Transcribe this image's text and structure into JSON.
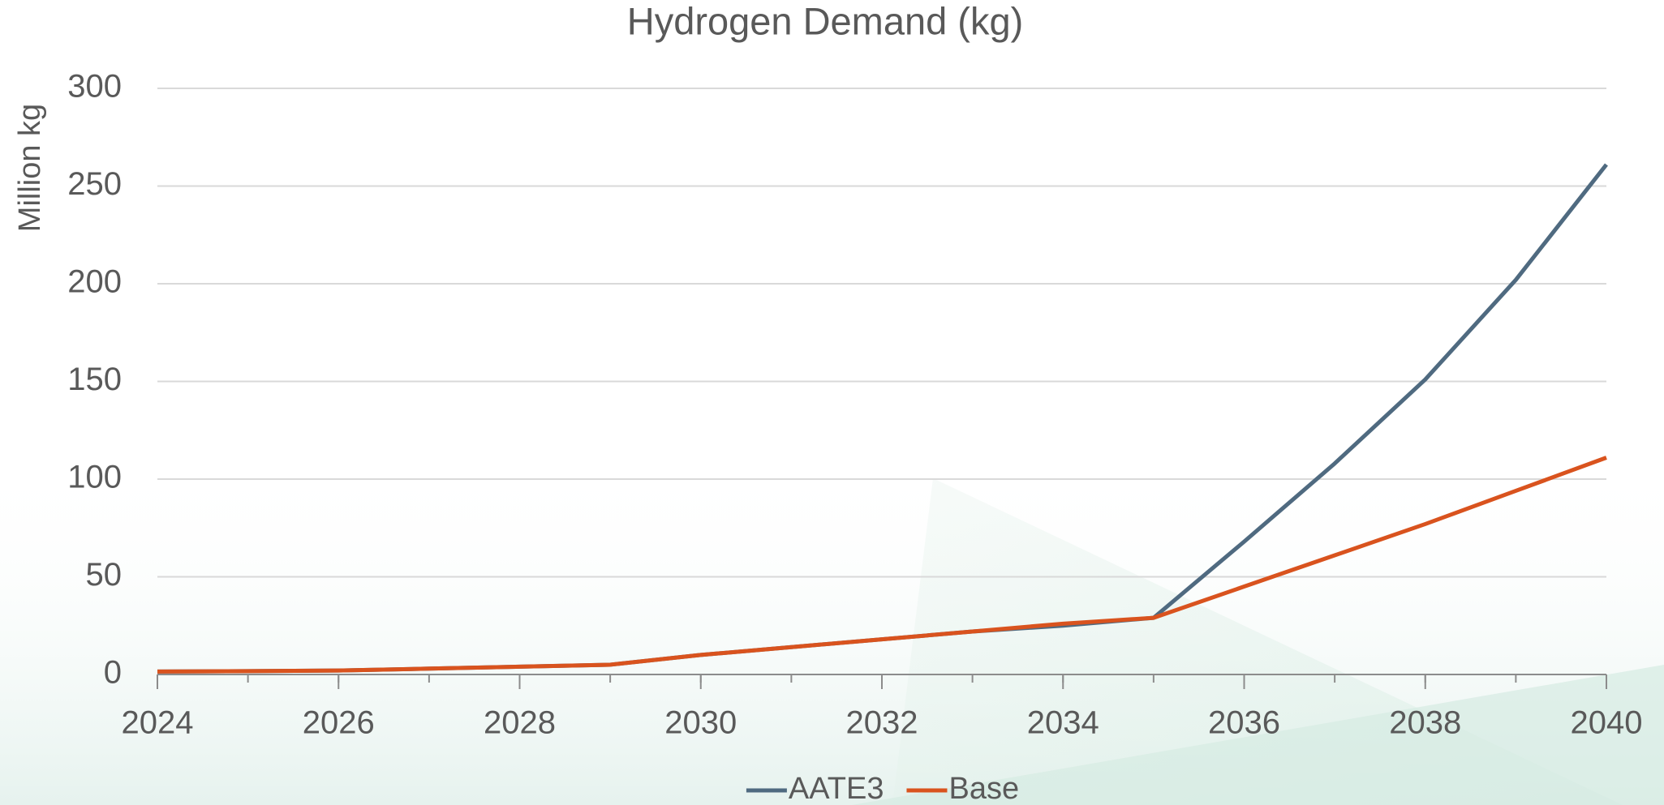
{
  "chart_data": {
    "type": "line",
    "title": "Hydrogen Demand (kg)",
    "y_label": "Million kg",
    "x": [
      2024,
      2025,
      2026,
      2027,
      2028,
      2029,
      2030,
      2031,
      2032,
      2033,
      2034,
      2035,
      2036,
      2037,
      2038,
      2039,
      2040
    ],
    "series": [
      {
        "name": "AATE3",
        "color": "#4f6a80",
        "values": [
          1.5,
          1.7,
          2,
          3,
          4,
          5,
          10,
          14,
          18,
          22,
          25,
          29,
          68,
          108,
          151,
          202,
          261
        ]
      },
      {
        "name": "Base",
        "color": "#d9531e",
        "values": [
          1.5,
          1.7,
          2,
          3,
          4,
          5,
          10,
          14,
          18,
          22,
          26,
          29,
          45,
          61,
          77,
          94,
          111
        ]
      }
    ],
    "xlim": [
      2024,
      2040
    ],
    "xticks": [
      2024,
      2026,
      2028,
      2030,
      2032,
      2034,
      2036,
      2038,
      2040
    ],
    "ylim": [
      0,
      300
    ],
    "yticks": [
      0,
      50,
      100,
      150,
      200,
      250,
      300
    ],
    "grid": true,
    "legend": "bottom"
  }
}
